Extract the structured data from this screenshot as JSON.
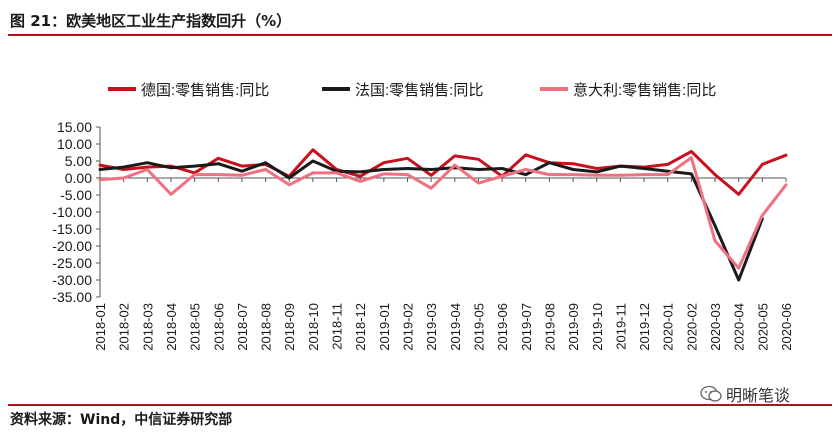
{
  "figure_title": "图 21：欧美地区工业生产指数回升（%）",
  "source_note": "资料来源：Wind，中信证券研究部",
  "watermark": "明晰笔谈",
  "chart_data": {
    "type": "line",
    "title": "",
    "xlabel": "",
    "ylabel": "",
    "ylim": [
      -35,
      15
    ],
    "yticks": [
      "15.00",
      "10.00",
      "5.00",
      "0.00",
      "-5.00",
      "-10.00",
      "-15.00",
      "-20.00",
      "-25.00",
      "-30.00",
      "-35.00"
    ],
    "ytick_values": [
      15,
      10,
      5,
      0,
      -5,
      -10,
      -15,
      -20,
      -25,
      -30,
      -35
    ],
    "grid": false,
    "legend_position": "top",
    "x": [
      "2018-01",
      "2018-02",
      "2018-03",
      "2018-04",
      "2018-05",
      "2018-06",
      "2018-07",
      "2018-08",
      "2018-09",
      "2018-10",
      "2018-11",
      "2018-12",
      "2019-01",
      "2019-02",
      "2019-03",
      "2019-04",
      "2019-05",
      "2019-06",
      "2019-07",
      "2019-08",
      "2019-09",
      "2019-10",
      "2019-11",
      "2019-12",
      "2020-01",
      "2020-02",
      "2020-03",
      "2020-04",
      "2020-05",
      "2020-06"
    ],
    "series": [
      {
        "name": "德国:零售销售:同比",
        "color": "#c8101e",
        "values": [
          3.8,
          2.5,
          3.2,
          3.5,
          1.5,
          5.8,
          3.5,
          4.0,
          0.5,
          8.3,
          2.5,
          0.5,
          4.5,
          5.8,
          0.8,
          6.5,
          5.5,
          0.5,
          6.8,
          4.5,
          4.2,
          2.8,
          3.5,
          3.2,
          4.0,
          7.8,
          1.0,
          -4.8,
          4.0,
          6.7
        ]
      },
      {
        "name": "法国:零售销售:同比",
        "color": "#1a1a1a",
        "values": [
          2.5,
          3.2,
          4.5,
          3.0,
          3.5,
          4.2,
          2.0,
          4.5,
          0.0,
          5.0,
          2.0,
          1.8,
          2.5,
          2.8,
          2.5,
          3.0,
          2.5,
          2.8,
          1.0,
          4.5,
          2.5,
          1.8,
          3.5,
          2.8,
          2.0,
          1.2,
          -14.0,
          -30.0,
          -12.0,
          null
        ]
      },
      {
        "name": "意大利:零售销售:同比",
        "color": "#f07080",
        "values": [
          -0.5,
          0.0,
          2.5,
          -4.8,
          1.0,
          1.0,
          0.8,
          2.5,
          -2.0,
          1.5,
          1.5,
          -1.0,
          1.2,
          1.0,
          -3.0,
          3.8,
          -1.5,
          0.5,
          2.5,
          1.0,
          1.0,
          0.8,
          0.8,
          1.0,
          1.0,
          6.0,
          -18.5,
          -26.5,
          -11.0,
          -2.0
        ]
      }
    ]
  }
}
